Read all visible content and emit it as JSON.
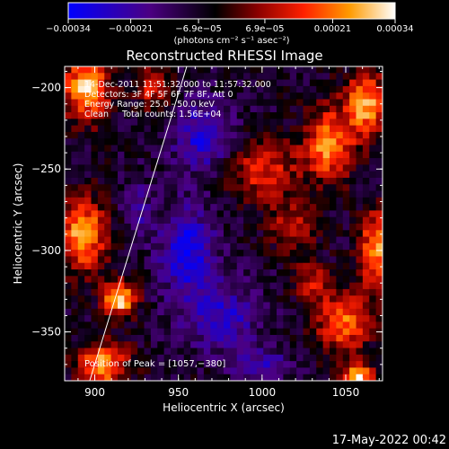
{
  "chart_data": {
    "type": "heatmap",
    "title": "Reconstructed RHESSI Image",
    "xlabel": "Heliocentric X (arcsec)",
    "ylabel": "Heliocentric Y (arcsec)",
    "xlim": [
      882,
      1072
    ],
    "ylim": [
      -380,
      -187
    ],
    "x_ticks": [
      {
        "v": 900,
        "label": "900"
      },
      {
        "v": 950,
        "label": "950"
      },
      {
        "v": 1000,
        "label": "1000"
      },
      {
        "v": 1050,
        "label": "1050"
      }
    ],
    "y_ticks": [
      {
        "v": -200,
        "label": "−200"
      },
      {
        "v": -250,
        "label": "−250"
      },
      {
        "v": -300,
        "label": "−300"
      },
      {
        "v": -350,
        "label": "−350"
      }
    ],
    "colorbar": {
      "range": [
        -0.00034,
        0.00034
      ],
      "ticks": [
        {
          "v": -0.00034,
          "label": "−0.00034"
        },
        {
          "v": -0.00021,
          "label": "−0.00021"
        },
        {
          "v": -6.9e-05,
          "label": "−6.9e−05"
        },
        {
          "v": 6.9e-05,
          "label": "6.9e−05"
        },
        {
          "v": 0.00021,
          "label": "0.00021"
        },
        {
          "v": 0.00034,
          "label": "0.00034"
        }
      ],
      "units": "(photons cm⁻² s⁻¹ asec⁻²)",
      "colors": [
        "#0000ff",
        "#4b0082",
        "#000000",
        "#8b0000",
        "#ff2000",
        "#ff9a00",
        "#ffffff"
      ]
    },
    "annotations": [
      "14-Dec-2011 11:51:32.000 to 11:57:32.000",
      "Detectors: 3F 4F 5F 6F 7F 8F, Att 0",
      "Energy Range: 25.0 - 50.0 keV",
      "Clean     Total counts: 1.56E+04"
    ],
    "peak_label": "Position of Peak = [1057,−380]",
    "limb_line": {
      "points": [
        [
          897,
          -380
        ],
        [
          955,
          -187
        ]
      ]
    },
    "hotspots": [
      {
        "x": 895,
        "y": -200,
        "amp": 0.9,
        "rx": 14,
        "ry": 20
      },
      {
        "x": 893,
        "y": -290,
        "amp": 0.85,
        "rx": 14,
        "ry": 22
      },
      {
        "x": 915,
        "y": -330,
        "amp": 1.0,
        "rx": 10,
        "ry": 10
      },
      {
        "x": 905,
        "y": -370,
        "amp": 0.8,
        "rx": 15,
        "ry": 14
      },
      {
        "x": 935,
        "y": -200,
        "amp": 0.5,
        "rx": 10,
        "ry": 14
      },
      {
        "x": 1000,
        "y": -250,
        "amp": 0.55,
        "rx": 22,
        "ry": 18
      },
      {
        "x": 1018,
        "y": -285,
        "amp": 0.45,
        "rx": 14,
        "ry": 16
      },
      {
        "x": 1040,
        "y": -235,
        "amp": 0.8,
        "rx": 14,
        "ry": 22
      },
      {
        "x": 1062,
        "y": -210,
        "amp": 0.85,
        "rx": 12,
        "ry": 20
      },
      {
        "x": 1068,
        "y": -300,
        "amp": 0.8,
        "rx": 10,
        "ry": 24
      },
      {
        "x": 1048,
        "y": -345,
        "amp": 0.7,
        "rx": 16,
        "ry": 18
      },
      {
        "x": 1057,
        "y": -378,
        "amp": 1.0,
        "rx": 9,
        "ry": 9
      },
      {
        "x": 1030,
        "y": -320,
        "amp": 0.45,
        "rx": 10,
        "ry": 14
      }
    ],
    "coldspots": [
      {
        "x": 965,
        "y": -230,
        "amp": 0.6,
        "rx": 18,
        "ry": 22
      },
      {
        "x": 955,
        "y": -300,
        "amp": 0.7,
        "rx": 16,
        "ry": 26
      },
      {
        "x": 975,
        "y": -340,
        "amp": 0.55,
        "rx": 22,
        "ry": 20
      },
      {
        "x": 925,
        "y": -275,
        "amp": 0.35,
        "rx": 8,
        "ry": 18
      },
      {
        "x": 1000,
        "y": -370,
        "amp": 0.4,
        "rx": 18,
        "ry": 10
      }
    ]
  },
  "footer": {
    "timestamp": "17-May-2022 00:42"
  }
}
